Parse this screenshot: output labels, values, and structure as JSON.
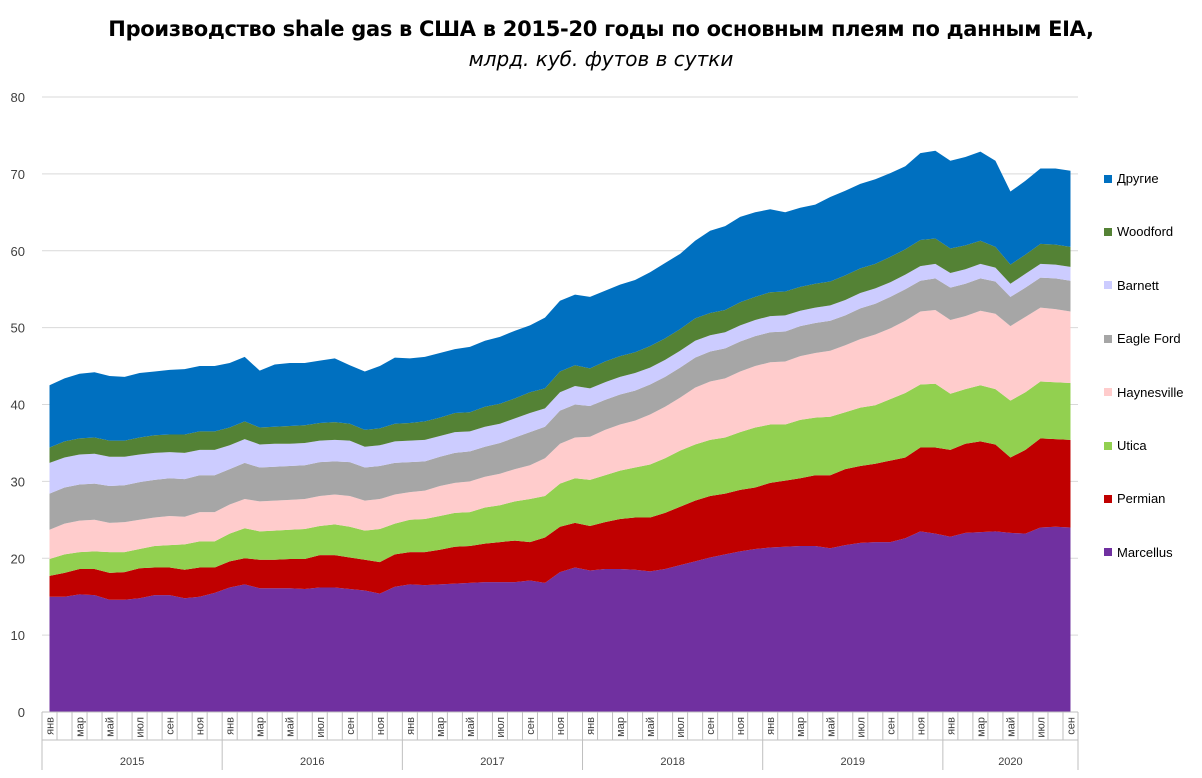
{
  "title": "Производство shale gas в США в 2015-20 годы по основным плеям по данным EIA,",
  "subtitle": "млрд. куб. футов в сутки",
  "chart_data": {
    "type": "area",
    "stacked": true,
    "title": "Производство shale gas в США в 2015-20 годы по основным плеям по данным EIA,",
    "subtitle": "млрд. куб. футов в сутки",
    "ylim": [
      0,
      80
    ],
    "yticks": [
      0,
      10,
      20,
      30,
      40,
      50,
      60,
      70,
      80
    ],
    "grid": "horizontal",
    "legend_position": "right",
    "years": [
      "2015",
      "2016",
      "2017",
      "2018",
      "2019",
      "2020"
    ],
    "month_labels": [
      "янв",
      "мар",
      "май",
      "июл",
      "сен",
      "ноя"
    ],
    "x": [
      "2015-01",
      "2015-02",
      "2015-03",
      "2015-04",
      "2015-05",
      "2015-06",
      "2015-07",
      "2015-08",
      "2015-09",
      "2015-10",
      "2015-11",
      "2015-12",
      "2016-01",
      "2016-02",
      "2016-03",
      "2016-04",
      "2016-05",
      "2016-06",
      "2016-07",
      "2016-08",
      "2016-09",
      "2016-10",
      "2016-11",
      "2016-12",
      "2017-01",
      "2017-02",
      "2017-03",
      "2017-04",
      "2017-05",
      "2017-06",
      "2017-07",
      "2017-08",
      "2017-09",
      "2017-10",
      "2017-11",
      "2017-12",
      "2018-01",
      "2018-02",
      "2018-03",
      "2018-04",
      "2018-05",
      "2018-06",
      "2018-07",
      "2018-08",
      "2018-09",
      "2018-10",
      "2018-11",
      "2018-12",
      "2019-01",
      "2019-02",
      "2019-03",
      "2019-04",
      "2019-05",
      "2019-06",
      "2019-07",
      "2019-08",
      "2019-09",
      "2019-10",
      "2019-11",
      "2019-12",
      "2020-01",
      "2020-02",
      "2020-03",
      "2020-04",
      "2020-05",
      "2020-06",
      "2020-07",
      "2020-08",
      "2020-09"
    ],
    "series": [
      {
        "name": "Marcellus",
        "color": "#7030a0",
        "values": [
          15.0,
          15.0,
          15.3,
          15.2,
          14.6,
          14.6,
          14.8,
          15.2,
          15.2,
          14.8,
          15.0,
          15.5,
          16.2,
          16.6,
          16.1,
          16.1,
          16.1,
          16.0,
          16.2,
          16.2,
          16.0,
          15.8,
          15.4,
          16.3,
          16.6,
          16.5,
          16.6,
          16.7,
          16.8,
          16.9,
          16.9,
          16.9,
          17.1,
          16.8,
          18.2,
          18.8,
          18.4,
          18.6,
          18.6,
          18.5,
          18.3,
          18.6,
          19.1,
          19.6,
          20.1,
          20.5,
          20.9,
          21.2,
          21.4,
          21.5,
          21.6,
          21.6,
          21.3,
          21.7,
          22.0,
          22.1,
          22.1,
          22.6,
          23.5,
          23.2,
          22.8,
          23.3,
          23.4,
          23.5,
          23.3,
          23.2,
          24.0,
          24.1,
          24.0
        ]
      },
      {
        "name": "Permian",
        "color": "#c00000",
        "values": [
          2.7,
          3.1,
          3.3,
          3.4,
          3.5,
          3.6,
          3.9,
          3.6,
          3.6,
          3.7,
          3.8,
          3.3,
          3.4,
          3.4,
          3.7,
          3.7,
          3.8,
          3.9,
          4.2,
          4.2,
          4.1,
          4.0,
          4.1,
          4.2,
          4.2,
          4.3,
          4.5,
          4.8,
          4.8,
          5.0,
          5.2,
          5.4,
          5.0,
          5.9,
          5.9,
          5.8,
          5.8,
          6.1,
          6.5,
          6.8,
          7.0,
          7.3,
          7.6,
          7.9,
          8.0,
          7.9,
          8.0,
          8.0,
          8.4,
          8.6,
          8.8,
          9.2,
          9.5,
          9.9,
          10.0,
          10.2,
          10.6,
          10.5,
          10.9,
          11.2,
          11.3,
          11.6,
          11.8,
          11.3,
          9.8,
          10.9,
          11.6,
          11.4,
          11.4
        ]
      },
      {
        "name": "Utica",
        "color": "#92d050",
        "values": [
          2.2,
          2.4,
          2.2,
          2.3,
          2.7,
          2.6,
          2.5,
          2.8,
          2.9,
          3.3,
          3.4,
          3.4,
          3.6,
          3.9,
          3.7,
          3.8,
          3.8,
          3.9,
          3.8,
          4.0,
          4.0,
          3.8,
          4.3,
          4.0,
          4.2,
          4.3,
          4.4,
          4.4,
          4.4,
          4.7,
          4.8,
          5.1,
          5.6,
          5.4,
          5.6,
          5.8,
          6.0,
          6.1,
          6.3,
          6.5,
          6.9,
          7.1,
          7.3,
          7.3,
          7.3,
          7.3,
          7.5,
          7.8,
          7.6,
          7.3,
          7.6,
          7.5,
          7.6,
          7.4,
          7.6,
          7.6,
          8.0,
          8.4,
          8.2,
          8.3,
          7.3,
          7.1,
          7.3,
          7.2,
          7.4,
          7.5,
          7.4,
          7.4,
          7.4
        ]
      },
      {
        "name": "Haynesville",
        "color": "#ffcccc",
        "values": [
          3.8,
          4.0,
          4.1,
          4.1,
          3.8,
          3.9,
          3.8,
          3.7,
          3.8,
          3.6,
          3.8,
          3.8,
          3.8,
          3.8,
          3.9,
          3.9,
          3.9,
          3.9,
          3.9,
          3.9,
          4.0,
          3.9,
          3.9,
          3.8,
          3.6,
          3.7,
          3.9,
          3.9,
          4.0,
          4.0,
          4.1,
          4.2,
          4.4,
          4.9,
          5.2,
          5.3,
          5.6,
          5.9,
          6.0,
          6.1,
          6.5,
          6.7,
          6.9,
          7.4,
          7.6,
          7.7,
          7.9,
          8.0,
          8.1,
          8.2,
          8.3,
          8.4,
          8.6,
          8.7,
          8.9,
          9.2,
          9.2,
          9.4,
          9.5,
          9.6,
          9.6,
          9.5,
          9.7,
          9.8,
          9.7,
          9.8,
          9.6,
          9.5,
          9.3
        ]
      },
      {
        "name": "Eagle Ford",
        "color": "#a6a6a6",
        "values": [
          4.7,
          4.7,
          4.7,
          4.7,
          4.8,
          4.8,
          4.9,
          4.9,
          4.9,
          4.9,
          4.8,
          4.8,
          4.6,
          4.7,
          4.4,
          4.4,
          4.4,
          4.4,
          4.4,
          4.3,
          4.4,
          4.3,
          4.3,
          4.1,
          3.9,
          3.8,
          3.8,
          3.9,
          3.9,
          3.9,
          4.0,
          4.1,
          4.3,
          4.1,
          4.3,
          4.3,
          4.0,
          3.9,
          3.9,
          3.9,
          3.9,
          3.9,
          3.9,
          3.9,
          3.9,
          3.9,
          3.9,
          3.9,
          3.9,
          3.9,
          3.9,
          3.9,
          3.9,
          3.9,
          4.0,
          4.0,
          4.1,
          4.1,
          4.0,
          4.1,
          4.2,
          4.2,
          4.2,
          4.2,
          3.8,
          3.8,
          3.9,
          4.0,
          4.0
        ]
      },
      {
        "name": "Barnett",
        "color": "#ccccff",
        "values": [
          4.0,
          3.9,
          3.9,
          3.9,
          3.8,
          3.7,
          3.6,
          3.5,
          3.4,
          3.4,
          3.3,
          3.3,
          3.1,
          3.1,
          3.0,
          3.0,
          2.9,
          2.9,
          2.8,
          2.8,
          2.8,
          2.7,
          2.7,
          2.8,
          2.8,
          2.8,
          2.7,
          2.7,
          2.6,
          2.6,
          2.5,
          2.5,
          2.5,
          2.4,
          2.4,
          2.4,
          2.3,
          2.3,
          2.3,
          2.3,
          2.2,
          2.2,
          2.2,
          2.2,
          2.1,
          2.1,
          2.1,
          2.1,
          2.1,
          2.1,
          2.0,
          2.0,
          2.0,
          2.0,
          2.0,
          2.0,
          1.9,
          1.9,
          1.9,
          1.9,
          1.9,
          1.9,
          1.9,
          1.8,
          1.7,
          1.8,
          1.8,
          1.8,
          1.8
        ]
      },
      {
        "name": "Woodford",
        "color": "#548235",
        "values": [
          2.0,
          2.1,
          2.1,
          2.1,
          2.1,
          2.1,
          2.2,
          2.3,
          2.3,
          2.4,
          2.4,
          2.4,
          2.3,
          2.3,
          2.2,
          2.2,
          2.3,
          2.3,
          2.3,
          2.3,
          2.2,
          2.2,
          2.2,
          2.3,
          2.3,
          2.4,
          2.4,
          2.5,
          2.5,
          2.6,
          2.6,
          2.6,
          2.7,
          2.6,
          2.7,
          2.7,
          2.6,
          2.7,
          2.7,
          2.7,
          2.8,
          2.8,
          2.8,
          2.9,
          2.9,
          2.9,
          3.0,
          3.0,
          3.1,
          3.1,
          3.1,
          3.1,
          3.1,
          3.2,
          3.2,
          3.2,
          3.3,
          3.3,
          3.4,
          3.3,
          3.2,
          3.1,
          3.0,
          2.7,
          2.5,
          2.5,
          2.6,
          2.6,
          2.6
        ]
      },
      {
        "name": "Другие",
        "color": "#0070c0",
        "values": [
          8.1,
          8.2,
          8.4,
          8.5,
          8.4,
          8.3,
          8.4,
          8.3,
          8.4,
          8.5,
          8.5,
          8.5,
          8.4,
          8.4,
          7.4,
          8.1,
          8.2,
          8.1,
          8.1,
          8.3,
          7.6,
          7.6,
          8.1,
          8.6,
          8.4,
          8.4,
          8.4,
          8.3,
          8.5,
          8.6,
          8.7,
          8.8,
          8.7,
          9.2,
          9.2,
          9.2,
          9.3,
          9.2,
          9.3,
          9.4,
          9.6,
          9.8,
          9.8,
          10.1,
          10.7,
          10.9,
          11.1,
          11.0,
          10.8,
          10.3,
          10.3,
          10.3,
          11.0,
          11.0,
          11.0,
          11.0,
          10.9,
          10.8,
          11.3,
          11.4,
          11.4,
          11.5,
          11.6,
          11.2,
          9.5,
          9.6,
          9.8,
          9.9,
          9.9
        ]
      }
    ]
  },
  "axis_colors": {
    "grid": "#d9d9d9",
    "axis": "#bfbfbf",
    "tick_text": "#404040"
  }
}
